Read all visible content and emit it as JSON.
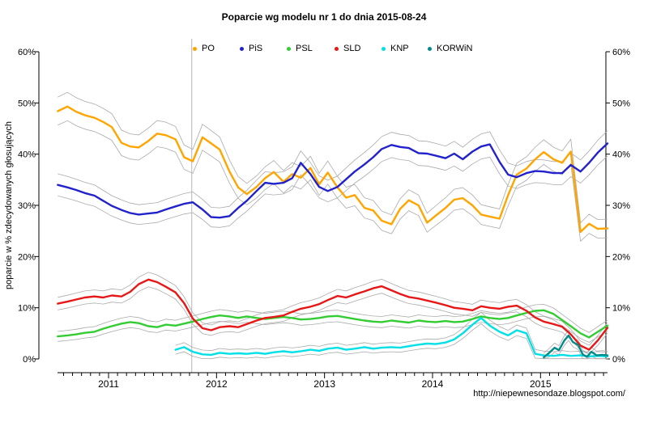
{
  "title": "Poparcie wg modelu nr 1 do dnia 2015-08-24",
  "watermark": "http://niepewnesondaze.blogspot.com/",
  "chart_data": {
    "type": "line",
    "title": "Poparcie wg modelu nr 1 do dnia 2015-08-24",
    "ylabel": "poparcie w % zdecydowanych głosujących",
    "xlabel": "",
    "ylim": [
      0,
      60
    ],
    "xlim": [
      2010.5,
      2015.72
    ],
    "grid": false,
    "legend_position": "top",
    "y_tick_values": [
      0,
      10,
      20,
      30,
      40,
      50,
      60
    ],
    "y_tick_labels": [
      "0%",
      "10%",
      "20%",
      "30%",
      "40%",
      "50%",
      "60%"
    ],
    "x_tick_values": [
      2011,
      2012,
      2013,
      2014,
      2015
    ],
    "x_tick_labels": [
      "2011",
      "2012",
      "2013",
      "2014",
      "2015"
    ],
    "axis_color": "#000000",
    "ci_color": "#AAAAAA",
    "vline_color": "#C3C3C3",
    "annotations": [
      {
        "type": "vline",
        "x": 2011.77
      }
    ],
    "ci_band": {
      "base": 0.8,
      "factor": 0.04
    },
    "x_monthly": [
      2010.53,
      2010.62,
      2010.7,
      2010.78,
      2010.87,
      2010.95,
      2011.03,
      2011.12,
      2011.2,
      2011.28,
      2011.37,
      2011.45,
      2011.53,
      2011.62,
      2011.7,
      2011.78,
      2011.87,
      2011.95,
      2012.03,
      2012.12,
      2012.2,
      2012.28,
      2012.37,
      2012.45,
      2012.53,
      2012.62,
      2012.7,
      2012.78,
      2012.87,
      2012.95,
      2013.03,
      2013.12,
      2013.2,
      2013.28,
      2013.37,
      2013.45,
      2013.53,
      2013.62,
      2013.7,
      2013.78,
      2013.87,
      2013.95,
      2014.03,
      2014.12,
      2014.2,
      2014.28,
      2014.37,
      2014.45,
      2014.53,
      2014.62,
      2014.7,
      2014.78,
      2014.87,
      2014.95,
      2015.03,
      2015.12,
      2015.2,
      2015.28,
      2015.37,
      2015.45,
      2015.53,
      2015.62
    ],
    "series": [
      {
        "name": "PO",
        "color": "#FFA500",
        "values": [
          48.4,
          49.3,
          48.3,
          47.6,
          47.1,
          46.3,
          45.3,
          42.2,
          41.5,
          41.3,
          42.6,
          44.0,
          43.7,
          42.9,
          39.4,
          38.6,
          43.3,
          42.1,
          40.9,
          36.6,
          33.5,
          32.2,
          33.6,
          35.3,
          36.5,
          34.6,
          36.1,
          35.4,
          37.3,
          34.1,
          36.4,
          33.5,
          31.5,
          32.0,
          29.5,
          29.0,
          27.0,
          26.3,
          29.3,
          31.0,
          30.0,
          26.6,
          28.0,
          29.5,
          31.1,
          31.4,
          30.0,
          28.2,
          27.8,
          27.4,
          32.0,
          36.0,
          37.2,
          39.0,
          40.4,
          39.0,
          38.3,
          40.5,
          24.8,
          26.4,
          25.4,
          25.5
        ]
      },
      {
        "name": "PiS",
        "color": "#2222CC",
        "values": [
          34.0,
          33.5,
          33.0,
          32.4,
          31.9,
          30.9,
          29.9,
          29.1,
          28.5,
          28.2,
          28.4,
          28.6,
          29.2,
          29.8,
          30.3,
          30.6,
          29.2,
          27.7,
          27.6,
          27.9,
          29.5,
          30.9,
          32.8,
          34.4,
          34.2,
          34.4,
          35.3,
          38.3,
          36.1,
          33.6,
          32.8,
          33.6,
          35.1,
          36.6,
          38.0,
          39.4,
          41.0,
          41.8,
          41.4,
          41.2,
          40.2,
          40.1,
          39.7,
          39.2,
          40.1,
          39.0,
          40.5,
          41.5,
          41.9,
          38.5,
          36.0,
          35.5,
          36.3,
          36.7,
          36.6,
          36.3,
          36.3,
          37.9,
          36.6,
          38.3,
          40.3,
          42.1
        ]
      },
      {
        "name": "PSL",
        "color": "#33CC33",
        "values": [
          4.4,
          4.6,
          4.8,
          5.1,
          5.3,
          5.9,
          6.4,
          6.9,
          7.2,
          7.0,
          6.4,
          6.2,
          6.7,
          6.5,
          6.9,
          7.3,
          7.8,
          8.2,
          8.5,
          8.3,
          8.0,
          8.3,
          8.0,
          7.8,
          8.0,
          8.2,
          8.0,
          7.7,
          7.8,
          8.0,
          8.3,
          8.4,
          8.1,
          7.8,
          7.5,
          7.3,
          7.2,
          7.5,
          7.3,
          7.1,
          7.5,
          7.3,
          7.2,
          7.4,
          7.2,
          7.3,
          7.8,
          8.3,
          8.0,
          7.8,
          8.0,
          8.5,
          9.0,
          9.4,
          9.5,
          8.8,
          7.6,
          6.4,
          5.0,
          4.2,
          5.3,
          6.5
        ]
      },
      {
        "name": "SLD",
        "color": "#E81717",
        "values": [
          10.8,
          11.2,
          11.6,
          12.0,
          12.2,
          12.0,
          12.4,
          12.2,
          13.1,
          14.6,
          15.5,
          15.0,
          14.1,
          13.0,
          10.9,
          7.9,
          6.0,
          5.6,
          6.2,
          6.4,
          6.2,
          6.8,
          7.5,
          8.0,
          8.2,
          8.5,
          9.2,
          9.8,
          10.2,
          10.7,
          11.5,
          12.3,
          12.0,
          12.6,
          13.2,
          13.8,
          14.2,
          13.4,
          12.7,
          12.1,
          11.8,
          11.4,
          11.0,
          10.5,
          10.0,
          9.8,
          9.5,
          10.3,
          10.0,
          9.8,
          10.2,
          10.4,
          9.4,
          8.1,
          7.3,
          6.8,
          6.3,
          4.8,
          2.6,
          1.8,
          3.6,
          6.1
        ]
      },
      {
        "name": "KNP",
        "color": "#00E0E6",
        "x": [
          2011.62,
          2011.7,
          2011.78,
          2011.87,
          2011.95,
          2012.03,
          2012.12,
          2012.2,
          2012.28,
          2012.37,
          2012.45,
          2012.53,
          2012.62,
          2012.7,
          2012.78,
          2012.87,
          2012.95,
          2013.03,
          2013.12,
          2013.2,
          2013.28,
          2013.37,
          2013.45,
          2013.53,
          2013.62,
          2013.7,
          2013.78,
          2013.87,
          2013.95,
          2014.03,
          2014.12,
          2014.2,
          2014.28,
          2014.37,
          2014.45,
          2014.53,
          2014.62,
          2014.7,
          2014.78,
          2014.87,
          2014.95,
          2015.03,
          2015.12,
          2015.2,
          2015.28,
          2015.37,
          2015.45,
          2015.53,
          2015.62
        ],
        "values": [
          1.8,
          2.3,
          1.4,
          0.9,
          0.8,
          1.2,
          1.0,
          1.1,
          1.0,
          1.2,
          1.0,
          1.3,
          1.5,
          1.3,
          1.5,
          1.8,
          1.6,
          2.0,
          2.2,
          1.8,
          2.0,
          2.3,
          2.0,
          2.2,
          2.3,
          2.2,
          2.5,
          2.8,
          3.0,
          2.9,
          3.2,
          3.8,
          5.0,
          6.7,
          8.0,
          6.5,
          5.3,
          4.6,
          5.6,
          5.0,
          1.0,
          0.7,
          0.6,
          0.8,
          0.6,
          0.7,
          0.5,
          0.6,
          0.5
        ]
      },
      {
        "name": "KORWiN",
        "color": "#008B8B",
        "x": [
          2015.03,
          2015.08,
          2015.13,
          2015.17,
          2015.22,
          2015.26,
          2015.3,
          2015.35,
          2015.39,
          2015.43,
          2015.47,
          2015.52,
          2015.57,
          2015.62
        ],
        "values": [
          0.3,
          1.2,
          2.2,
          1.7,
          3.6,
          4.6,
          3.3,
          2.7,
          0.9,
          0.4,
          1.4,
          0.7,
          0.8,
          0.7
        ]
      }
    ]
  }
}
